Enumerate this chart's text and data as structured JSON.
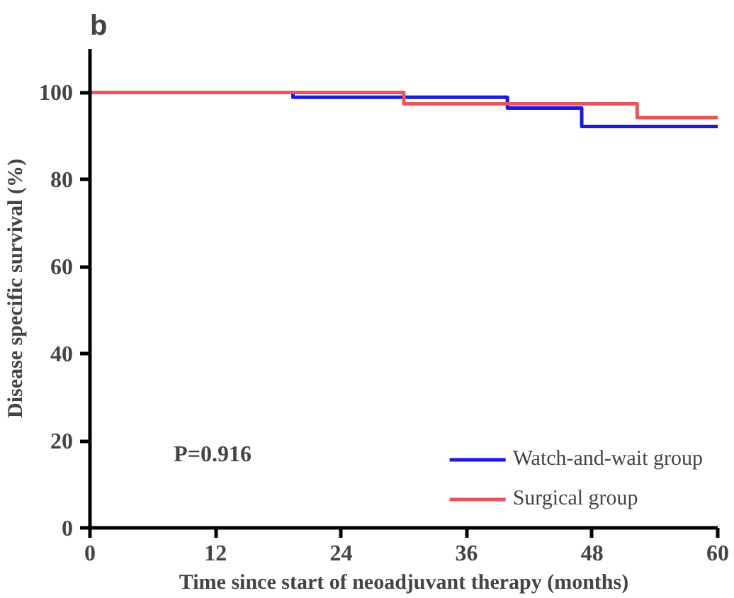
{
  "chart_data": {
    "type": "step",
    "title": "b",
    "xlabel": "Time since start of neoadjuvant therapy (months)",
    "ylabel": "Disease specific survival (%)",
    "xlim": [
      0,
      60
    ],
    "ylim": [
      0,
      110
    ],
    "xticks": [
      0,
      12,
      24,
      36,
      48,
      60
    ],
    "yticks": [
      0,
      20,
      40,
      60,
      80,
      100
    ],
    "grid": false,
    "legend": "bottom right",
    "annotations": [
      "P=0.916"
    ],
    "series": [
      {
        "name": "Watch-and-wait group",
        "color": "#1a1adb",
        "x": [
          0,
          19.4,
          39.9,
          47,
          60
        ],
        "values": [
          100,
          98.9,
          96.4,
          92.2,
          92.2
        ]
      },
      {
        "name": "Surgical group",
        "color": "#e8545a",
        "x": [
          0,
          30,
          52.3,
          60
        ],
        "values": [
          100,
          97.4,
          94.2,
          94.2
        ]
      }
    ]
  }
}
